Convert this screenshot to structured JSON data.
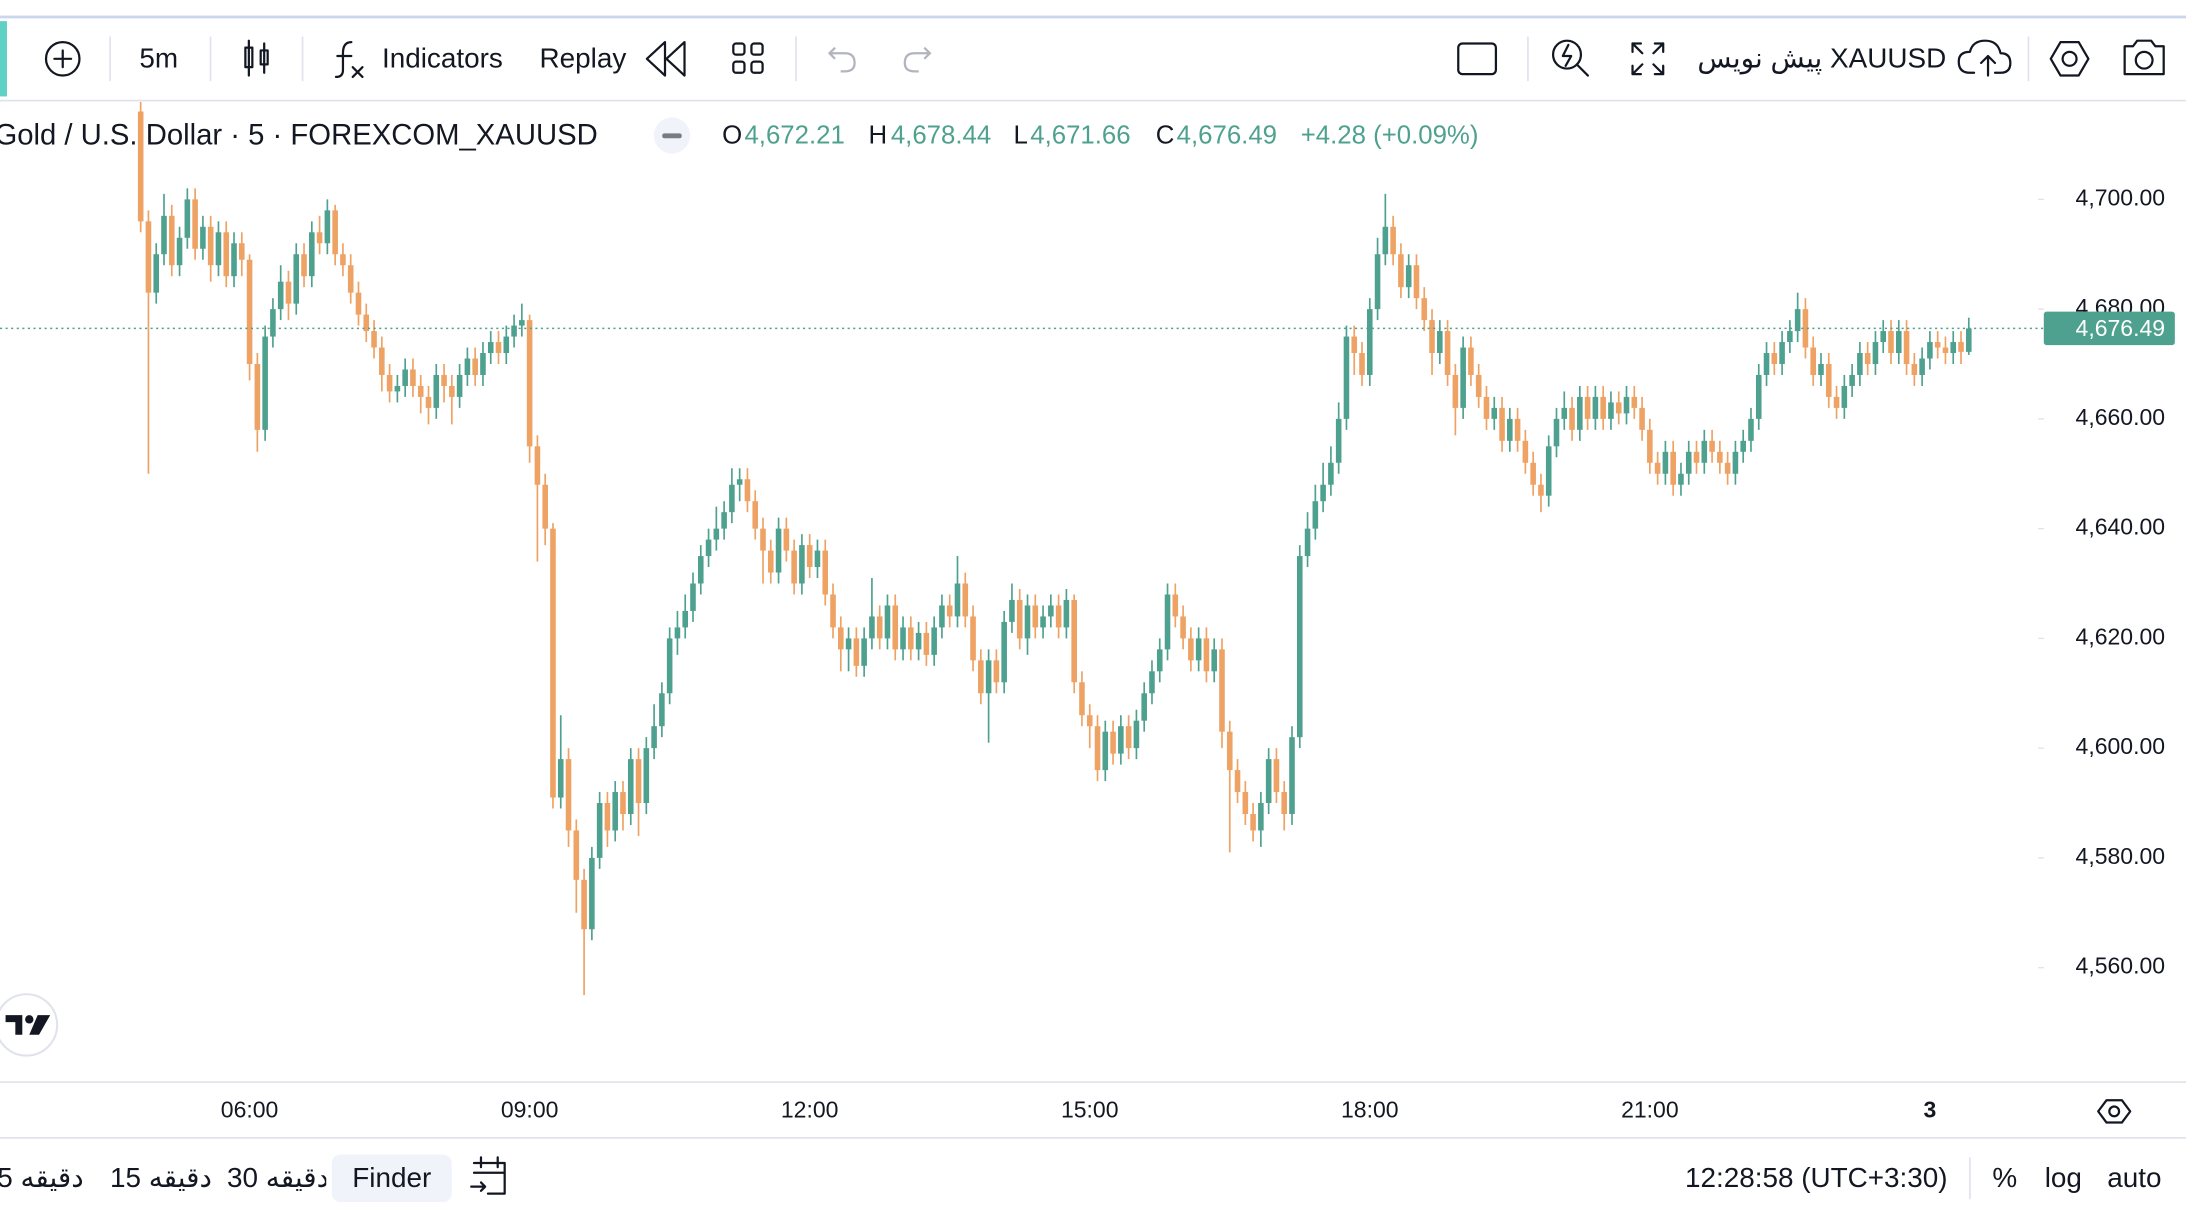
{
  "toolbar": {
    "interval": "5m",
    "indicators": "Indicators",
    "replay": "Replay",
    "symbol_draft": "پیش نویس XAUUSD"
  },
  "chart_data": {
    "type": "candlestick",
    "title": "Gold / U.S. Dollar · 5 · FOREXCOM_XAUUSD",
    "ohlc_legend": {
      "open_key": "O",
      "open": "4,672.21",
      "high_key": "H",
      "high": "4,678.44",
      "low_key": "L",
      "low": "4,671.66",
      "close_key": "C",
      "close": "4,676.49",
      "change": "+4.28 (+0.09%)"
    },
    "categories": [
      null,
      null,
      null,
      null,
      null,
      null,
      null,
      null,
      null,
      null,
      null,
      null,
      null,
      null,
      "06:00",
      null,
      null,
      null,
      null,
      null,
      null,
      null,
      null,
      null,
      null,
      null,
      null,
      null,
      null,
      null,
      null,
      null,
      null,
      null,
      null,
      null,
      null,
      null,
      null,
      null,
      null,
      null,
      null,
      null,
      null,
      null,
      null,
      null,
      null,
      null,
      "09:00",
      null,
      null,
      null,
      null,
      null,
      null,
      null,
      null,
      null,
      null,
      null,
      null,
      null,
      null,
      null,
      null,
      null,
      null,
      null,
      null,
      null,
      null,
      null,
      null,
      null,
      null,
      null,
      null,
      null,
      null,
      null,
      null,
      null,
      null,
      null,
      "12:00",
      null,
      null,
      null,
      null,
      null,
      null,
      null,
      null,
      null,
      null,
      null,
      null,
      null,
      null,
      null,
      null,
      null,
      null,
      null,
      null,
      null,
      null,
      null,
      null,
      null,
      null,
      null,
      null,
      null,
      null,
      null,
      null,
      null,
      null,
      null,
      "15:00",
      null,
      null,
      null,
      null,
      null,
      null,
      null,
      null,
      null,
      null,
      null,
      null,
      null,
      null,
      null,
      null,
      null,
      null,
      null,
      null,
      null,
      null,
      null,
      null,
      null,
      null,
      null,
      null,
      null,
      null,
      null,
      null,
      null,
      null,
      null,
      "18:00",
      null,
      null,
      null,
      null,
      null,
      null,
      null,
      null,
      null,
      null,
      null,
      null,
      null,
      null,
      null,
      null,
      null,
      null,
      null,
      null,
      null,
      null,
      null,
      null,
      null,
      null,
      null,
      null,
      null,
      null,
      null,
      null,
      null,
      null,
      null,
      "21:00",
      null,
      null,
      null,
      null,
      null,
      null,
      null,
      null,
      null,
      null,
      null,
      null,
      null,
      null,
      null,
      null,
      null,
      null,
      null,
      null,
      null,
      null,
      null,
      null,
      null,
      null,
      null,
      null,
      null,
      null,
      null,
      null,
      null,
      null,
      null,
      "3",
      null,
      null,
      null,
      null,
      null
    ],
    "open": [
      4716,
      4696,
      4683,
      4690,
      4697,
      4688,
      4693,
      4700,
      4691,
      4695,
      4688,
      4694,
      4686,
      4692,
      4689,
      4670,
      4658,
      4675,
      4680,
      4685,
      4681,
      4690,
      4686,
      4694,
      4692,
      4698,
      4690,
      4688,
      4683,
      4679,
      4676,
      4673,
      4668,
      4665,
      4666,
      4669,
      4666,
      4664,
      4662,
      4668,
      4666,
      4664,
      4668,
      4671,
      4668,
      4672,
      4674,
      4672,
      4675,
      4677,
      4678,
      4655,
      4648,
      4640,
      4591,
      4598,
      4585,
      4576,
      4567,
      4580,
      4590,
      4585,
      4592,
      4588,
      4598,
      4590,
      4600,
      4604,
      4610,
      4620,
      4622,
      4625,
      4630,
      4635,
      4638,
      4640,
      4643,
      4648,
      4649,
      4645,
      4640,
      4636,
      4632,
      4640,
      4636,
      4630,
      4637,
      4633,
      4636,
      4628,
      4622,
      4618,
      4620,
      4615,
      4620,
      4624,
      4620,
      4626,
      4618,
      4622,
      4618,
      4621,
      4617,
      4622,
      4626,
      4624,
      4630,
      4624,
      4616,
      4610,
      4616,
      4612,
      4623,
      4627,
      4620,
      4626,
      4622,
      4624,
      4626,
      4622,
      4627,
      4612,
      4606,
      4604,
      4596,
      4603,
      4599,
      4604,
      4600,
      4605,
      4610,
      4614,
      4618,
      4628,
      4624,
      4620,
      4616,
      4620,
      4614,
      4618,
      4603,
      4596,
      4592,
      4588,
      4585,
      4590,
      4598,
      4592,
      4588,
      4602,
      4635,
      4640,
      4645,
      4648,
      4652,
      4660,
      4675,
      4672,
      4668,
      4680,
      4690,
      4695,
      4690,
      4684,
      4688,
      4682,
      4678,
      4672,
      4676,
      4668,
      4662,
      4673,
      4668,
      4664,
      4660,
      4662,
      4656,
      4660,
      4656,
      4652,
      4648,
      4646,
      4655,
      4660,
      4662,
      4658,
      4664,
      4660,
      4664,
      4660,
      4663,
      4661,
      4664,
      4662,
      4658,
      4652,
      4650,
      4654,
      4648,
      4650,
      4654,
      4652,
      4656,
      4654,
      4652,
      4650,
      4654,
      4656,
      4660,
      4668,
      4672,
      4670,
      4674,
      4676,
      4680,
      4673,
      4668,
      4670,
      4664,
      4662,
      4666,
      4668,
      4672,
      4670,
      4674,
      4676,
      4672,
      4676,
      4670,
      4668,
      4671,
      4674,
      4673,
      4672,
      4674,
      4672.21
    ],
    "high": [
      4718,
      4698,
      4692,
      4701,
      4699,
      4695,
      4702,
      4702,
      4697,
      4697,
      4696,
      4696,
      4694,
      4694,
      4690,
      4672,
      4677,
      4682,
      4688,
      4687,
      4692,
      4692,
      4696,
      4697,
      4700,
      4699,
      4692,
      4690,
      4685,
      4681,
      4678,
      4675,
      4670,
      4668,
      4671,
      4671,
      4668,
      4666,
      4670,
      4670,
      4668,
      4670,
      4673,
      4673,
      4674,
      4676,
      4676,
      4677,
      4679,
      4681,
      4679,
      4657,
      4650,
      4641,
      4606,
      4600,
      4587,
      4578,
      4582,
      4592,
      4592,
      4594,
      4594,
      4600,
      4600,
      4602,
      4608,
      4612,
      4622,
      4625,
      4628,
      4632,
      4637,
      4640,
      4644,
      4645,
      4651,
      4651,
      4651,
      4647,
      4642,
      4638,
      4642,
      4642,
      4638,
      4639,
      4639,
      4638,
      4638,
      4630,
      4624,
      4622,
      4622,
      4622,
      4631,
      4626,
      4628,
      4628,
      4624,
      4624,
      4623,
      4623,
      4624,
      4628,
      4628,
      4635,
      4632,
      4626,
      4618,
      4618,
      4618,
      4625,
      4630,
      4629,
      4628,
      4628,
      4626,
      4628,
      4628,
      4629,
      4628,
      4614,
      4608,
      4606,
      4605,
      4605,
      4606,
      4606,
      4607,
      4612,
      4616,
      4620,
      4630,
      4630,
      4626,
      4622,
      4622,
      4622,
      4620,
      4620,
      4605,
      4598,
      4594,
      4590,
      4592,
      4600,
      4600,
      4594,
      4604,
      4637,
      4643,
      4648,
      4652,
      4655,
      4663,
      4677,
      4677,
      4674,
      4682,
      4693,
      4701,
      4697,
      4692,
      4690,
      4690,
      4684,
      4680,
      4678,
      4678,
      4670,
      4675,
      4675,
      4670,
      4666,
      4664,
      4664,
      4662,
      4662,
      4658,
      4654,
      4650,
      4657,
      4662,
      4665,
      4664,
      4666,
      4666,
      4666,
      4666,
      4665,
      4665,
      4666,
      4666,
      4664,
      4660,
      4654,
      4656,
      4656,
      4652,
      4656,
      4656,
      4658,
      4658,
      4656,
      4654,
      4656,
      4658,
      4662,
      4670,
      4674,
      4674,
      4676,
      4678,
      4683,
      4682,
      4675,
      4672,
      4672,
      4666,
      4668,
      4670,
      4674,
      4674,
      4676,
      4678,
      4678,
      4678,
      4678,
      4672,
      4673,
      4676,
      4676,
      4675,
      4676,
      4676,
      4678.44
    ],
    "low": [
      4694,
      4650,
      4681,
      4688,
      4686,
      4686,
      4691,
      4689,
      4689,
      4685,
      4686,
      4684,
      4684,
      4686,
      4667,
      4654,
      4656,
      4673,
      4678,
      4678,
      4679,
      4684,
      4684,
      4690,
      4690,
      4688,
      4686,
      4681,
      4677,
      4674,
      4671,
      4665,
      4663,
      4663,
      4664,
      4664,
      4661,
      4659,
      4660,
      4663,
      4659,
      4662,
      4666,
      4666,
      4666,
      4670,
      4670,
      4670,
      4673,
      4675,
      4652,
      4634,
      4637,
      4589,
      4589,
      4582,
      4570,
      4555,
      4565,
      4578,
      4582,
      4583,
      4585,
      4586,
      4584,
      4588,
      4598,
      4602,
      4608,
      4617,
      4620,
      4623,
      4628,
      4633,
      4636,
      4638,
      4641,
      4645,
      4643,
      4638,
      4630,
      4630,
      4630,
      4634,
      4628,
      4628,
      4631,
      4631,
      4626,
      4620,
      4614,
      4614,
      4613,
      4613,
      4618,
      4618,
      4618,
      4616,
      4616,
      4616,
      4616,
      4615,
      4615,
      4620,
      4622,
      4622,
      4622,
      4614,
      4608,
      4601,
      4610,
      4610,
      4621,
      4618,
      4617,
      4620,
      4620,
      4622,
      4620,
      4620,
      4610,
      4604,
      4600,
      4594,
      4594,
      4597,
      4597,
      4598,
      4598,
      4603,
      4608,
      4612,
      4616,
      4622,
      4618,
      4614,
      4614,
      4612,
      4612,
      4600,
      4581,
      4590,
      4586,
      4583,
      4582,
      4588,
      4590,
      4585,
      4586,
      4600,
      4633,
      4638,
      4643,
      4646,
      4650,
      4658,
      4668,
      4666,
      4666,
      4678,
      4688,
      4688,
      4682,
      4682,
      4680,
      4676,
      4668,
      4670,
      4666,
      4657,
      4660,
      4666,
      4662,
      4658,
      4658,
      4654,
      4654,
      4654,
      4650,
      4646,
      4643,
      4644,
      4653,
      4658,
      4656,
      4656,
      4658,
      4658,
      4658,
      4658,
      4659,
      4659,
      4660,
      4656,
      4650,
      4648,
      4648,
      4646,
      4646,
      4648,
      4650,
      4650,
      4652,
      4650,
      4648,
      4648,
      4652,
      4654,
      4658,
      4666,
      4668,
      4668,
      4672,
      4674,
      4671,
      4666,
      4666,
      4662,
      4660,
      4660,
      4664,
      4666,
      4668,
      4668,
      4672,
      4670,
      4670,
      4668,
      4666,
      4666,
      4669,
      4671,
      4670,
      4670,
      4670,
      4671.66
    ],
    "close": [
      4696,
      4683,
      4690,
      4697,
      4688,
      4693,
      4700,
      4691,
      4695,
      4688,
      4694,
      4686,
      4692,
      4689,
      4670,
      4658,
      4675,
      4680,
      4685,
      4681,
      4690,
      4686,
      4694,
      4692,
      4698,
      4690,
      4688,
      4683,
      4679,
      4676,
      4673,
      4668,
      4665,
      4666,
      4669,
      4666,
      4664,
      4662,
      4668,
      4666,
      4664,
      4668,
      4671,
      4668,
      4672,
      4674,
      4672,
      4675,
      4677,
      4678,
      4655,
      4648,
      4640,
      4591,
      4598,
      4585,
      4576,
      4567,
      4580,
      4590,
      4585,
      4592,
      4588,
      4598,
      4590,
      4600,
      4604,
      4610,
      4620,
      4622,
      4625,
      4630,
      4635,
      4638,
      4640,
      4643,
      4648,
      4649,
      4645,
      4640,
      4636,
      4632,
      4640,
      4636,
      4630,
      4637,
      4633,
      4636,
      4628,
      4622,
      4618,
      4620,
      4615,
      4620,
      4624,
      4620,
      4626,
      4618,
      4622,
      4618,
      4621,
      4617,
      4622,
      4626,
      4624,
      4630,
      4624,
      4616,
      4610,
      4616,
      4612,
      4623,
      4627,
      4620,
      4626,
      4622,
      4624,
      4626,
      4622,
      4627,
      4612,
      4606,
      4604,
      4596,
      4603,
      4599,
      4604,
      4600,
      4605,
      4610,
      4614,
      4618,
      4628,
      4624,
      4620,
      4616,
      4620,
      4614,
      4618,
      4603,
      4596,
      4592,
      4588,
      4585,
      4590,
      4598,
      4592,
      4588,
      4602,
      4635,
      4640,
      4645,
      4648,
      4652,
      4660,
      4675,
      4672,
      4668,
      4680,
      4690,
      4695,
      4690,
      4684,
      4688,
      4682,
      4678,
      4672,
      4676,
      4668,
      4662,
      4673,
      4668,
      4664,
      4660,
      4662,
      4656,
      4660,
      4656,
      4652,
      4648,
      4646,
      4655,
      4660,
      4662,
      4658,
      4664,
      4660,
      4664,
      4660,
      4663,
      4661,
      4664,
      4662,
      4658,
      4652,
      4650,
      4654,
      4648,
      4650,
      4654,
      4652,
      4656,
      4654,
      4652,
      4650,
      4654,
      4656,
      4660,
      4668,
      4672,
      4670,
      4674,
      4676,
      4680,
      4673,
      4668,
      4670,
      4664,
      4662,
      4666,
      4668,
      4672,
      4670,
      4674,
      4676,
      4672,
      4676,
      4670,
      4668,
      4671,
      4674,
      4673,
      4672,
      4674,
      4672.21,
      4676.49
    ],
    "up_color": "#4fa18f",
    "down_color": "#eea263",
    "ylim": [
      4539.4,
      4718.5
    ],
    "yticks": [
      {
        "value": 4560,
        "label": "4,560.00"
      },
      {
        "value": 4580,
        "label": "4,580.00"
      },
      {
        "value": 4600,
        "label": "4,600.00"
      },
      {
        "value": 4620,
        "label": "4,620.00"
      },
      {
        "value": 4640,
        "label": "4,640.00"
      },
      {
        "value": 4660,
        "label": "4,660.00"
      },
      {
        "value": 4680,
        "label": "4,680.00"
      },
      {
        "value": 4700,
        "label": "4,700.00"
      }
    ],
    "grid": false,
    "last_price_label": "4,676.49"
  },
  "bottom_bar": {
    "intervals": [
      "5 دقیقه",
      "15 دقیقه",
      "30 دقیقه"
    ],
    "finder": "Finder",
    "clock": "12:28:58 (UTC+3:30)",
    "percent": "%",
    "log": "log",
    "auto": "auto"
  }
}
